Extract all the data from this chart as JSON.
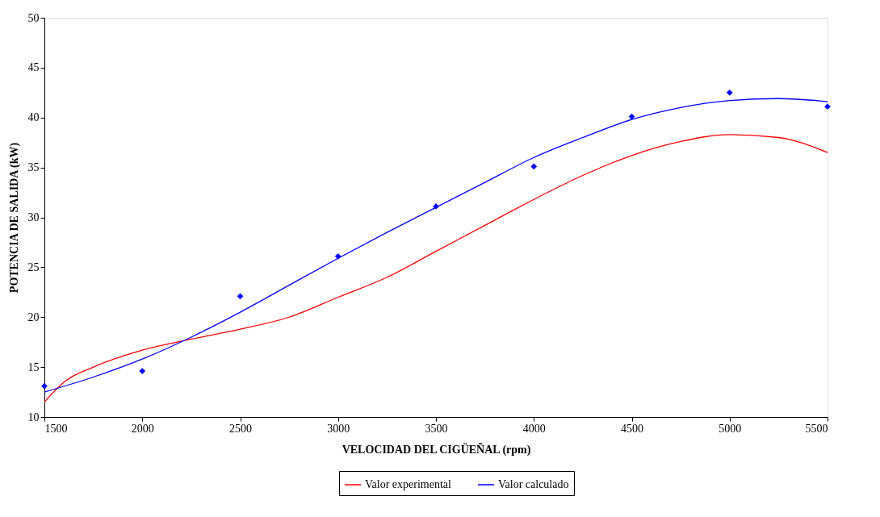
{
  "chart_data": {
    "type": "line",
    "xlabel": "VELOCIDAD DEL CIGÜEÑAL (rpm)",
    "ylabel": "POTENCIA DE SALIDA (kW)",
    "xlim": [
      1500,
      5500
    ],
    "xticks": [
      1500,
      2000,
      2500,
      3000,
      3500,
      4000,
      4500,
      5000,
      5500
    ],
    "ylim": [
      10,
      50
    ],
    "yticks": [
      10,
      15,
      20,
      25,
      30,
      35,
      40,
      45,
      50
    ],
    "grid": false,
    "legend": "bottom",
    "line_style": "solid",
    "series": [
      {
        "name": "Valor experimental",
        "color": "#ff0000",
        "marker": "none",
        "x": [
          1500,
          1600,
          1750,
          2000,
          2250,
          2500,
          2750,
          3000,
          3250,
          3500,
          3750,
          4000,
          4250,
          4500,
          4750,
          5000,
          5250,
          5500
        ],
        "values": [
          11.5,
          13.5,
          15,
          16.7,
          17.8,
          18.8,
          20,
          22,
          24,
          26.6,
          29.2,
          31.8,
          34.2,
          36.2,
          37.6,
          38.3,
          38,
          36.5
        ]
      },
      {
        "name": "Valor calculado",
        "color": "#0000ff",
        "marker": "none",
        "x": [
          1500,
          1750,
          2000,
          2250,
          2500,
          2750,
          3000,
          3250,
          3500,
          3750,
          4000,
          4250,
          4500,
          4750,
          5000,
          5250,
          5500
        ],
        "values": [
          12.5,
          14,
          15.8,
          18,
          20.5,
          23.2,
          25.9,
          28.5,
          31,
          33.5,
          36,
          38,
          39.8,
          41,
          41.7,
          41.9,
          41.6
        ]
      },
      {
        "type": "scatter",
        "color": "#0000ff",
        "marker": "diamond",
        "x": [
          1500,
          2000,
          2500,
          3000,
          3500,
          4000,
          4500,
          5000,
          5500
        ],
        "values": [
          13.1,
          14.6,
          22.1,
          26.1,
          31.1,
          35.1,
          40.1,
          42.5,
          41.1
        ]
      }
    ]
  }
}
